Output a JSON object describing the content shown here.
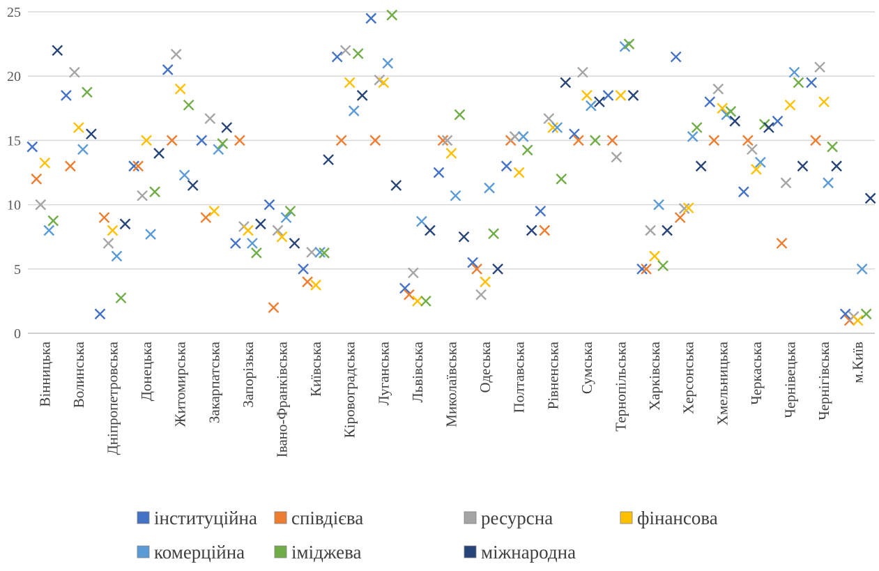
{
  "chart_data": {
    "type": "scatter",
    "categories": [
      "Вінницька",
      "Волинська",
      "Дніпропетровська",
      "Донецька",
      "Житомирська",
      "Закарпатська",
      "Запорізька",
      "Івано-Франківська",
      "Київська",
      "Кіровоградська",
      "Луганська",
      "Львівська",
      "Миколаївська",
      "Одеська",
      "Полтавська",
      "Рівненська",
      "Сумська",
      "Тернопільська",
      "Харківська",
      "Херсонська",
      "Хмельницька",
      "Черкаська",
      "Чернівецька",
      "Чернігівська",
      "м.Київ"
    ],
    "ylim": [
      0,
      25
    ],
    "yticks": [
      0,
      5,
      10,
      15,
      20,
      25
    ],
    "grid": true,
    "legend_position": "bottom",
    "marker": "x",
    "series": [
      {
        "name": "інституційна",
        "color": "#4472C4",
        "values": [
          14.5,
          18.5,
          1.5,
          13,
          20.5,
          15,
          7,
          10,
          5,
          21.5,
          24.5,
          3.5,
          12.5,
          5.5,
          13,
          9.5,
          15.5,
          18.5,
          5,
          21.5,
          18,
          11,
          16.5,
          19.5,
          1.5
        ]
      },
      {
        "name": "співдієва",
        "color": "#ED7D31",
        "values": [
          12,
          13,
          9,
          13,
          15,
          9,
          15,
          2,
          4,
          15,
          15,
          3,
          15,
          5,
          15,
          8,
          15,
          15,
          5,
          9,
          15,
          15,
          7,
          15,
          1
        ]
      },
      {
        "name": "ресурсна",
        "color": "#A5A5A5",
        "values": [
          10,
          20.3,
          7,
          10.7,
          21.7,
          16.7,
          8.3,
          8,
          6.3,
          22,
          19.7,
          4.7,
          15,
          3,
          15.3,
          16.7,
          20.3,
          13.7,
          8,
          9.7,
          19,
          14.3,
          11.7,
          20.7,
          1.3
        ]
      },
      {
        "name": "фінансова",
        "color": "#FFC000",
        "values": [
          13.25,
          16,
          8,
          15,
          19,
          9.5,
          8,
          7.5,
          3.75,
          19.5,
          19.5,
          2.5,
          14,
          4,
          12.5,
          16,
          18.5,
          18.5,
          6,
          9.75,
          17.5,
          12.75,
          17.75,
          18,
          1
        ]
      },
      {
        "name": "комерційна",
        "color": "#5B9BD5",
        "values": [
          8,
          14.3,
          6,
          7.7,
          12.3,
          14.3,
          7,
          9,
          6.3,
          17.3,
          21,
          8.7,
          10.7,
          11.3,
          15.3,
          16,
          17.7,
          22.3,
          10,
          15.3,
          17,
          13.3,
          20.3,
          11.7,
          5
        ]
      },
      {
        "name": "іміджева",
        "color": "#70AD47",
        "values": [
          8.75,
          18.75,
          2.75,
          11,
          17.75,
          14.75,
          6.25,
          9.5,
          6.25,
          21.75,
          24.75,
          2.5,
          17,
          7.75,
          14.25,
          12,
          15,
          22.5,
          5.25,
          16,
          17.25,
          16.25,
          19.5,
          14.5,
          1.5
        ]
      },
      {
        "name": "міжнародна",
        "color": "#264478",
        "values": [
          22,
          15.5,
          8.5,
          14,
          11.5,
          16,
          8.5,
          7,
          13.5,
          18.5,
          11.5,
          8,
          7.5,
          5,
          8,
          19.5,
          18,
          18.5,
          8,
          13,
          16.5,
          16,
          13,
          13,
          10.5
        ]
      }
    ]
  }
}
